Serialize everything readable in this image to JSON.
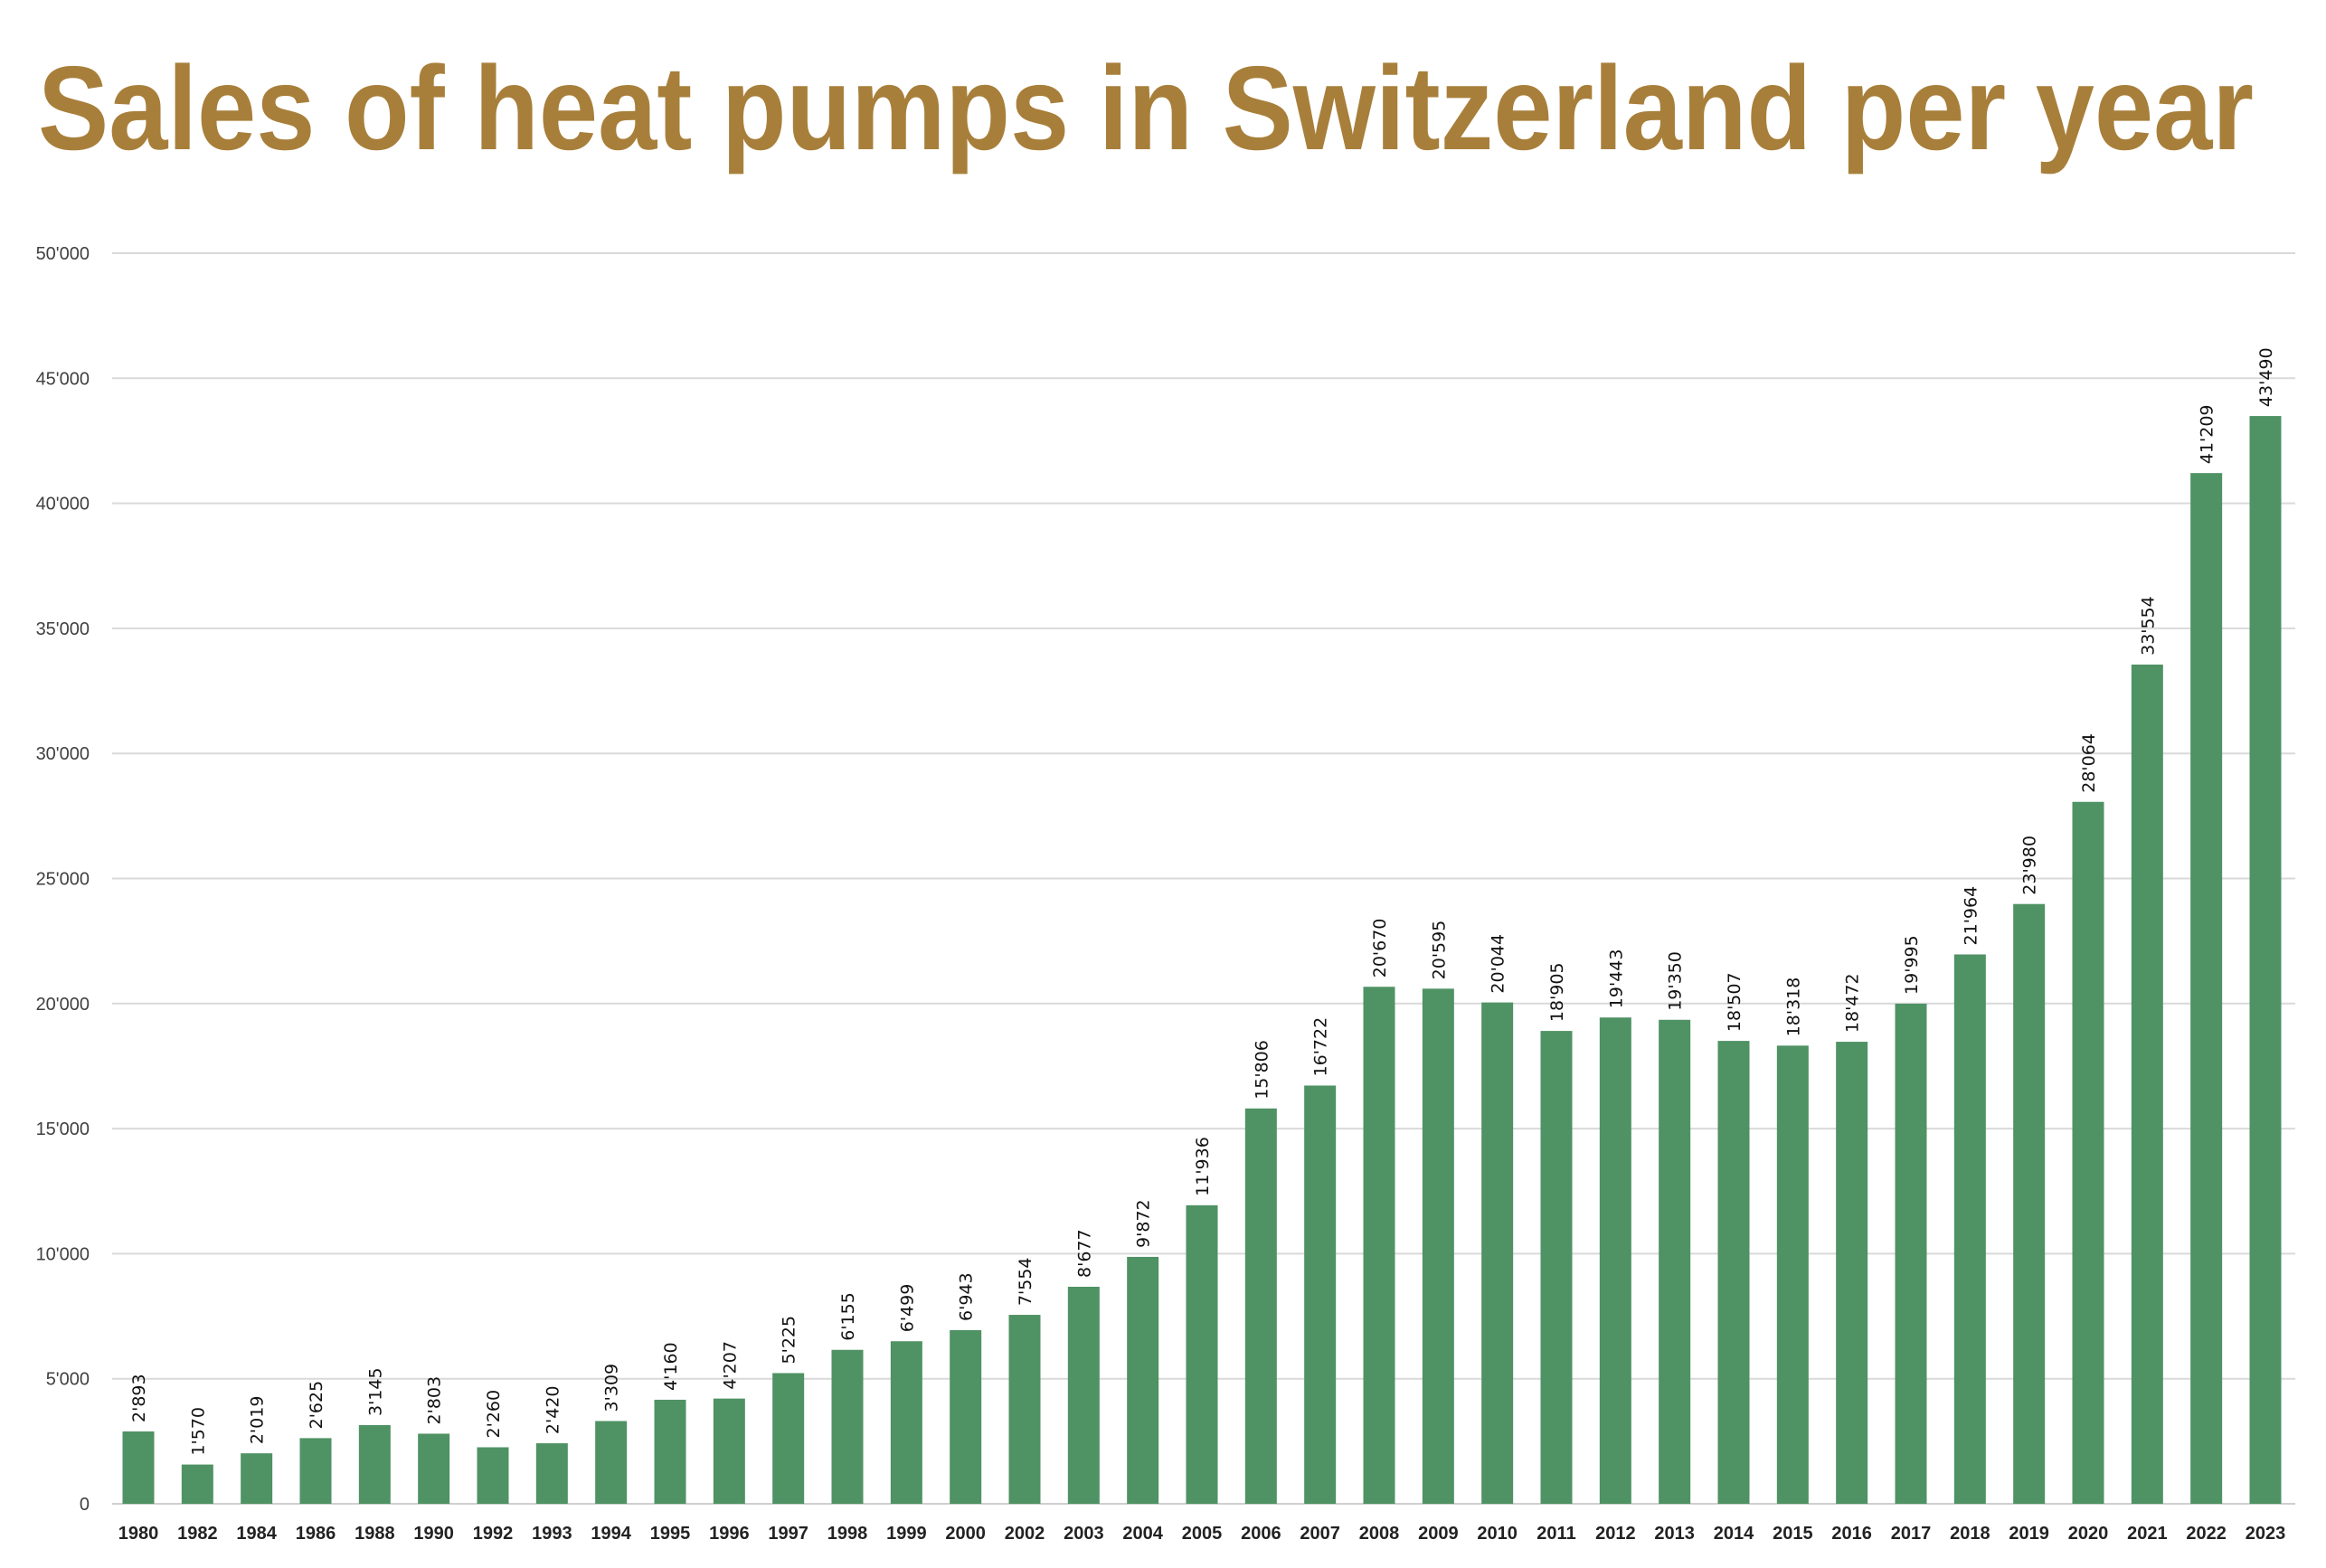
{
  "chart_data": {
    "type": "bar",
    "title": "Sales of heat pumps in Switzerland per year",
    "xlabel": "",
    "ylabel": "",
    "ylim": [
      0,
      50000
    ],
    "yticks": [
      0,
      5000,
      10000,
      15000,
      20000,
      25000,
      30000,
      35000,
      40000,
      45000,
      50000
    ],
    "ytick_labels": [
      "0",
      "5'000",
      "10'000",
      "15'000",
      "20'000",
      "25'000",
      "30'000",
      "35'000",
      "40'000",
      "45'000",
      "50'000"
    ],
    "grid": true,
    "bar_color": "#4f9264",
    "title_color": "#a87f3a",
    "categories": [
      "1980",
      "1982",
      "1984",
      "1986",
      "1988",
      "1990",
      "1992",
      "1993",
      "1994",
      "1995",
      "1996",
      "1997",
      "1998",
      "1999",
      "2000",
      "2002",
      "2003",
      "2004",
      "2005",
      "2006",
      "2007",
      "2008",
      "2009",
      "2010",
      "2011",
      "2012",
      "2013",
      "2014",
      "2015",
      "2016",
      "2017",
      "2018",
      "2019",
      "2020",
      "2021",
      "2022",
      "2023"
    ],
    "values": [
      2893,
      1570,
      2019,
      2625,
      3145,
      2803,
      2260,
      2420,
      3309,
      4160,
      4207,
      5225,
      6155,
      6499,
      6943,
      7554,
      8677,
      9872,
      11936,
      15806,
      16722,
      20670,
      20595,
      20044,
      18905,
      19443,
      19350,
      18507,
      18318,
      18472,
      19995,
      21964,
      23980,
      28064,
      33554,
      41209,
      43490
    ],
    "value_labels": [
      "2'893",
      "1'570",
      "2'019",
      "2'625",
      "3'145",
      "2'803",
      "2'260",
      "2'420",
      "3'309",
      "4'160",
      "4'207",
      "5'225",
      "6'155",
      "6'499",
      "6'943",
      "7'554",
      "8'677",
      "9'872",
      "11'936",
      "15'806",
      "16'722",
      "20'670",
      "20'595",
      "20'044",
      "18'905",
      "19'443",
      "19'350",
      "18'507",
      "18'318",
      "18'472",
      "19'995",
      "21'964",
      "23'980",
      "28'064",
      "33'554",
      "41'209",
      "43'490"
    ]
  }
}
